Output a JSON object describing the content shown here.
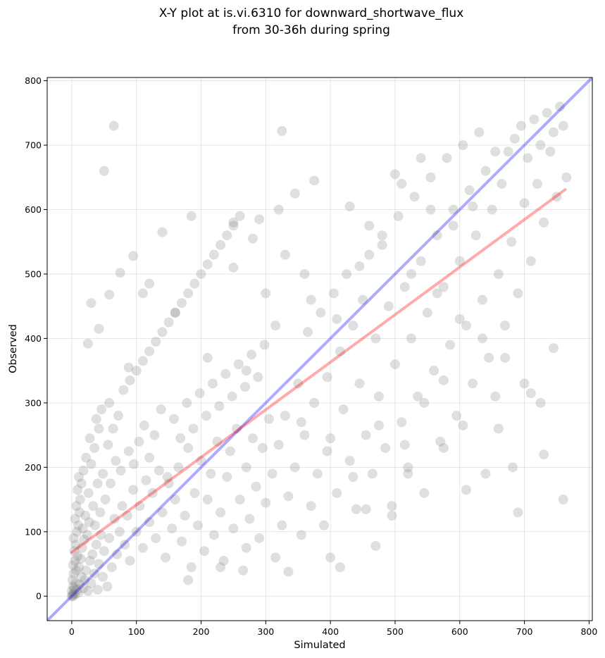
{
  "chart_data": {
    "type": "scatter",
    "title_line1": "X-Y plot at is.vi.6310 for downward_shortwave_flux",
    "title_line2": "from 30-36h during spring",
    "xlabel": "Simulated",
    "ylabel": "Observed",
    "xlim": [
      -38,
      805
    ],
    "ylim": [
      -38,
      805
    ],
    "xticks": [
      0,
      100,
      200,
      300,
      400,
      500,
      600,
      700,
      800
    ],
    "yticks": [
      0,
      100,
      200,
      300,
      400,
      500,
      600,
      700,
      800
    ],
    "xtick_labels": [
      "0",
      "100",
      "200",
      "300",
      "400",
      "500",
      "600",
      "700",
      "800"
    ],
    "ytick_labels": [
      "0",
      "100",
      "200",
      "300",
      "400",
      "500",
      "600",
      "700",
      "800"
    ],
    "grid": true,
    "point_color": "#808080",
    "point_opacity": 0.25,
    "reference_line": {
      "name": "1:1",
      "color": "#0000ff",
      "slope": 1,
      "intercept": 0
    },
    "fit_line": {
      "name": "regression",
      "color": "#ff0000",
      "x_start": 0,
      "x_end": 763,
      "y_start": 68,
      "y_end": 631
    },
    "points": [
      [
        0,
        0
      ],
      [
        1,
        2
      ],
      [
        2,
        0
      ],
      [
        3,
        5
      ],
      [
        0,
        8
      ],
      [
        5,
        3
      ],
      [
        4,
        12
      ],
      [
        2,
        15
      ],
      [
        6,
        20
      ],
      [
        1,
        25
      ],
      [
        8,
        10
      ],
      [
        3,
        35
      ],
      [
        10,
        5
      ],
      [
        7,
        40
      ],
      [
        2,
        48
      ],
      [
        12,
        18
      ],
      [
        5,
        55
      ],
      [
        15,
        30
      ],
      [
        9,
        62
      ],
      [
        4,
        70
      ],
      [
        18,
        12
      ],
      [
        11,
        45
      ],
      [
        6,
        80
      ],
      [
        20,
        25
      ],
      [
        14,
        58
      ],
      [
        3,
        90
      ],
      [
        22,
        40
      ],
      [
        8,
        100
      ],
      [
        25,
        8
      ],
      [
        16,
        75
      ],
      [
        10,
        110
      ],
      [
        28,
        55
      ],
      [
        19,
        88
      ],
      [
        5,
        120
      ],
      [
        30,
        20
      ],
      [
        12,
        130
      ],
      [
        24,
        95
      ],
      [
        32,
        65
      ],
      [
        7,
        140
      ],
      [
        35,
        35
      ],
      [
        17,
        105
      ],
      [
        40,
        10
      ],
      [
        13,
        150
      ],
      [
        27,
        115
      ],
      [
        38,
        80
      ],
      [
        9,
        165
      ],
      [
        42,
        50
      ],
      [
        21,
        125
      ],
      [
        45,
        95
      ],
      [
        15,
        175
      ],
      [
        33,
        140
      ],
      [
        48,
        30
      ],
      [
        11,
        185
      ],
      [
        26,
        160
      ],
      [
        50,
        70
      ],
      [
        36,
        110
      ],
      [
        55,
        15
      ],
      [
        18,
        195
      ],
      [
        44,
        130
      ],
      [
        58,
        90
      ],
      [
        30,
        205
      ],
      [
        62,
        45
      ],
      [
        40,
        175
      ],
      [
        66,
        120
      ],
      [
        22,
        215
      ],
      [
        52,
        150
      ],
      [
        70,
        65
      ],
      [
        35,
        230
      ],
      [
        74,
        100
      ],
      [
        48,
        190
      ],
      [
        78,
        140
      ],
      [
        28,
        245
      ],
      [
        60,
        175
      ],
      [
        82,
        80
      ],
      [
        42,
        260
      ],
      [
        86,
        125
      ],
      [
        68,
        210
      ],
      [
        90,
        55
      ],
      [
        38,
        275
      ],
      [
        95,
        165
      ],
      [
        56,
        235
      ],
      [
        100,
        100
      ],
      [
        76,
        195
      ],
      [
        105,
        140
      ],
      [
        46,
        290
      ],
      [
        110,
        75
      ],
      [
        88,
        225
      ],
      [
        115,
        180
      ],
      [
        64,
        260
      ],
      [
        120,
        115
      ],
      [
        96,
        205
      ],
      [
        125,
        160
      ],
      [
        58,
        300
      ],
      [
        130,
        90
      ],
      [
        104,
        240
      ],
      [
        135,
        195
      ],
      [
        72,
        280
      ],
      [
        140,
        130
      ],
      [
        112,
        265
      ],
      [
        145,
        60
      ],
      [
        80,
        320
      ],
      [
        150,
        175
      ],
      [
        120,
        215
      ],
      [
        155,
        105
      ],
      [
        90,
        335
      ],
      [
        160,
        150
      ],
      [
        128,
        250
      ],
      [
        165,
        200
      ],
      [
        100,
        350
      ],
      [
        170,
        85
      ],
      [
        138,
        290
      ],
      [
        175,
        125
      ],
      [
        110,
        365
      ],
      [
        180,
        230
      ],
      [
        148,
        185
      ],
      [
        185,
        45
      ],
      [
        120,
        380
      ],
      [
        190,
        160
      ],
      [
        158,
        275
      ],
      [
        195,
        110
      ],
      [
        130,
        395
      ],
      [
        200,
        210
      ],
      [
        168,
        245
      ],
      [
        205,
        70
      ],
      [
        140,
        410
      ],
      [
        210,
        150
      ],
      [
        178,
        300
      ],
      [
        215,
        190
      ],
      [
        150,
        425
      ],
      [
        220,
        95
      ],
      [
        188,
        260
      ],
      [
        225,
        240
      ],
      [
        160,
        440
      ],
      [
        230,
        130
      ],
      [
        198,
        315
      ],
      [
        235,
        55
      ],
      [
        170,
        455
      ],
      [
        240,
        185
      ],
      [
        208,
        280
      ],
      [
        245,
        225
      ],
      [
        180,
        470
      ],
      [
        250,
        105
      ],
      [
        218,
        330
      ],
      [
        255,
        260
      ],
      [
        190,
        485
      ],
      [
        260,
        150
      ],
      [
        228,
        295
      ],
      [
        265,
        40
      ],
      [
        200,
        500
      ],
      [
        270,
        200
      ],
      [
        238,
        345
      ],
      [
        275,
        120
      ],
      [
        210,
        515
      ],
      [
        280,
        245
      ],
      [
        248,
        310
      ],
      [
        285,
        170
      ],
      [
        220,
        530
      ],
      [
        290,
        90
      ],
      [
        258,
        360
      ],
      [
        295,
        230
      ],
      [
        230,
        545
      ],
      [
        300,
        145
      ],
      [
        268,
        325
      ],
      [
        305,
        275
      ],
      [
        240,
        560
      ],
      [
        310,
        190
      ],
      [
        278,
        375
      ],
      [
        315,
        60
      ],
      [
        250,
        575
      ],
      [
        320,
        235
      ],
      [
        288,
        340
      ],
      [
        325,
        110
      ],
      [
        260,
        590
      ],
      [
        330,
        280
      ],
      [
        298,
        390
      ],
      [
        335,
        155
      ],
      [
        345,
        200
      ],
      [
        350,
        330
      ],
      [
        355,
        95
      ],
      [
        360,
        250
      ],
      [
        365,
        410
      ],
      [
        370,
        140
      ],
      [
        375,
        300
      ],
      [
        380,
        190
      ],
      [
        385,
        440
      ],
      [
        390,
        110
      ],
      [
        395,
        340
      ],
      [
        400,
        245
      ],
      [
        405,
        470
      ],
      [
        410,
        160
      ],
      [
        415,
        380
      ],
      [
        420,
        290
      ],
      [
        425,
        500
      ],
      [
        430,
        210
      ],
      [
        435,
        420
      ],
      [
        440,
        135
      ],
      [
        445,
        330
      ],
      [
        450,
        460
      ],
      [
        455,
        250
      ],
      [
        460,
        530
      ],
      [
        465,
        190
      ],
      [
        470,
        400
      ],
      [
        475,
        310
      ],
      [
        480,
        560
      ],
      [
        485,
        230
      ],
      [
        490,
        450
      ],
      [
        495,
        140
      ],
      [
        500,
        360
      ],
      [
        505,
        590
      ],
      [
        510,
        270
      ],
      [
        515,
        480
      ],
      [
        520,
        200
      ],
      [
        525,
        400
      ],
      [
        530,
        620
      ],
      [
        535,
        310
      ],
      [
        540,
        520
      ],
      [
        545,
        160
      ],
      [
        550,
        440
      ],
      [
        555,
        650
      ],
      [
        560,
        350
      ],
      [
        565,
        560
      ],
      [
        570,
        240
      ],
      [
        575,
        480
      ],
      [
        580,
        680
      ],
      [
        585,
        390
      ],
      [
        590,
        600
      ],
      [
        595,
        280
      ],
      [
        600,
        520
      ],
      [
        605,
        700
      ],
      [
        610,
        420
      ],
      [
        615,
        630
      ],
      [
        620,
        330
      ],
      [
        625,
        560
      ],
      [
        630,
        720
      ],
      [
        635,
        460
      ],
      [
        640,
        660
      ],
      [
        645,
        370
      ],
      [
        650,
        600
      ],
      [
        655,
        690
      ],
      [
        660,
        500
      ],
      [
        665,
        640
      ],
      [
        670,
        420
      ],
      [
        675,
        690
      ],
      [
        680,
        550
      ],
      [
        685,
        710
      ],
      [
        690,
        470
      ],
      [
        695,
        730
      ],
      [
        700,
        610
      ],
      [
        705,
        680
      ],
      [
        710,
        520
      ],
      [
        715,
        740
      ],
      [
        720,
        640
      ],
      [
        725,
        700
      ],
      [
        730,
        580
      ],
      [
        735,
        750
      ],
      [
        740,
        690
      ],
      [
        745,
        720
      ],
      [
        750,
        620
      ],
      [
        755,
        760
      ],
      [
        760,
        730
      ],
      [
        765,
        650
      ],
      [
        760,
        150
      ],
      [
        730,
        220
      ],
      [
        640,
        190
      ],
      [
        655,
        310
      ],
      [
        690,
        130
      ],
      [
        50,
        660
      ],
      [
        65,
        730
      ],
      [
        325,
        722
      ],
      [
        540,
        680
      ],
      [
        500,
        655
      ],
      [
        470,
        78
      ],
      [
        495,
        125
      ],
      [
        455,
        135
      ],
      [
        520,
        190
      ],
      [
        575,
        230
      ],
      [
        610,
        165
      ],
      [
        400,
        60
      ],
      [
        415,
        45
      ],
      [
        335,
        38
      ],
      [
        230,
        45
      ],
      [
        180,
        25
      ],
      [
        270,
        75
      ],
      [
        110,
        470
      ],
      [
        95,
        528
      ],
      [
        140,
        565
      ],
      [
        185,
        590
      ],
      [
        160,
        440
      ],
      [
        120,
        485
      ],
      [
        75,
        502
      ],
      [
        30,
        455
      ],
      [
        25,
        392
      ],
      [
        42,
        415
      ],
      [
        58,
        468
      ],
      [
        88,
        355
      ],
      [
        210,
        370
      ],
      [
        280,
        555
      ],
      [
        320,
        600
      ],
      [
        360,
        500
      ],
      [
        300,
        470
      ],
      [
        250,
        510
      ],
      [
        345,
        625
      ],
      [
        375,
        645
      ],
      [
        430,
        605
      ],
      [
        460,
        575
      ],
      [
        510,
        640
      ],
      [
        555,
        600
      ],
      [
        590,
        575
      ],
      [
        620,
        605
      ],
      [
        445,
        512
      ],
      [
        480,
        545
      ],
      [
        525,
        500
      ],
      [
        565,
        470
      ],
      [
        600,
        430
      ],
      [
        635,
        400
      ],
      [
        670,
        370
      ],
      [
        700,
        330
      ],
      [
        725,
        300
      ],
      [
        315,
        420
      ],
      [
        270,
        350
      ],
      [
        355,
        270
      ],
      [
        395,
        225
      ],
      [
        435,
        185
      ],
      [
        475,
        265
      ],
      [
        515,
        235
      ],
      [
        545,
        300
      ],
      [
        575,
        335
      ],
      [
        605,
        265
      ],
      [
        660,
        260
      ],
      [
        682,
        200
      ],
      [
        710,
        315
      ],
      [
        745,
        385
      ],
      [
        250,
        580
      ],
      [
        290,
        585
      ],
      [
        330,
        530
      ],
      [
        370,
        460
      ],
      [
        410,
        430
      ]
    ]
  }
}
